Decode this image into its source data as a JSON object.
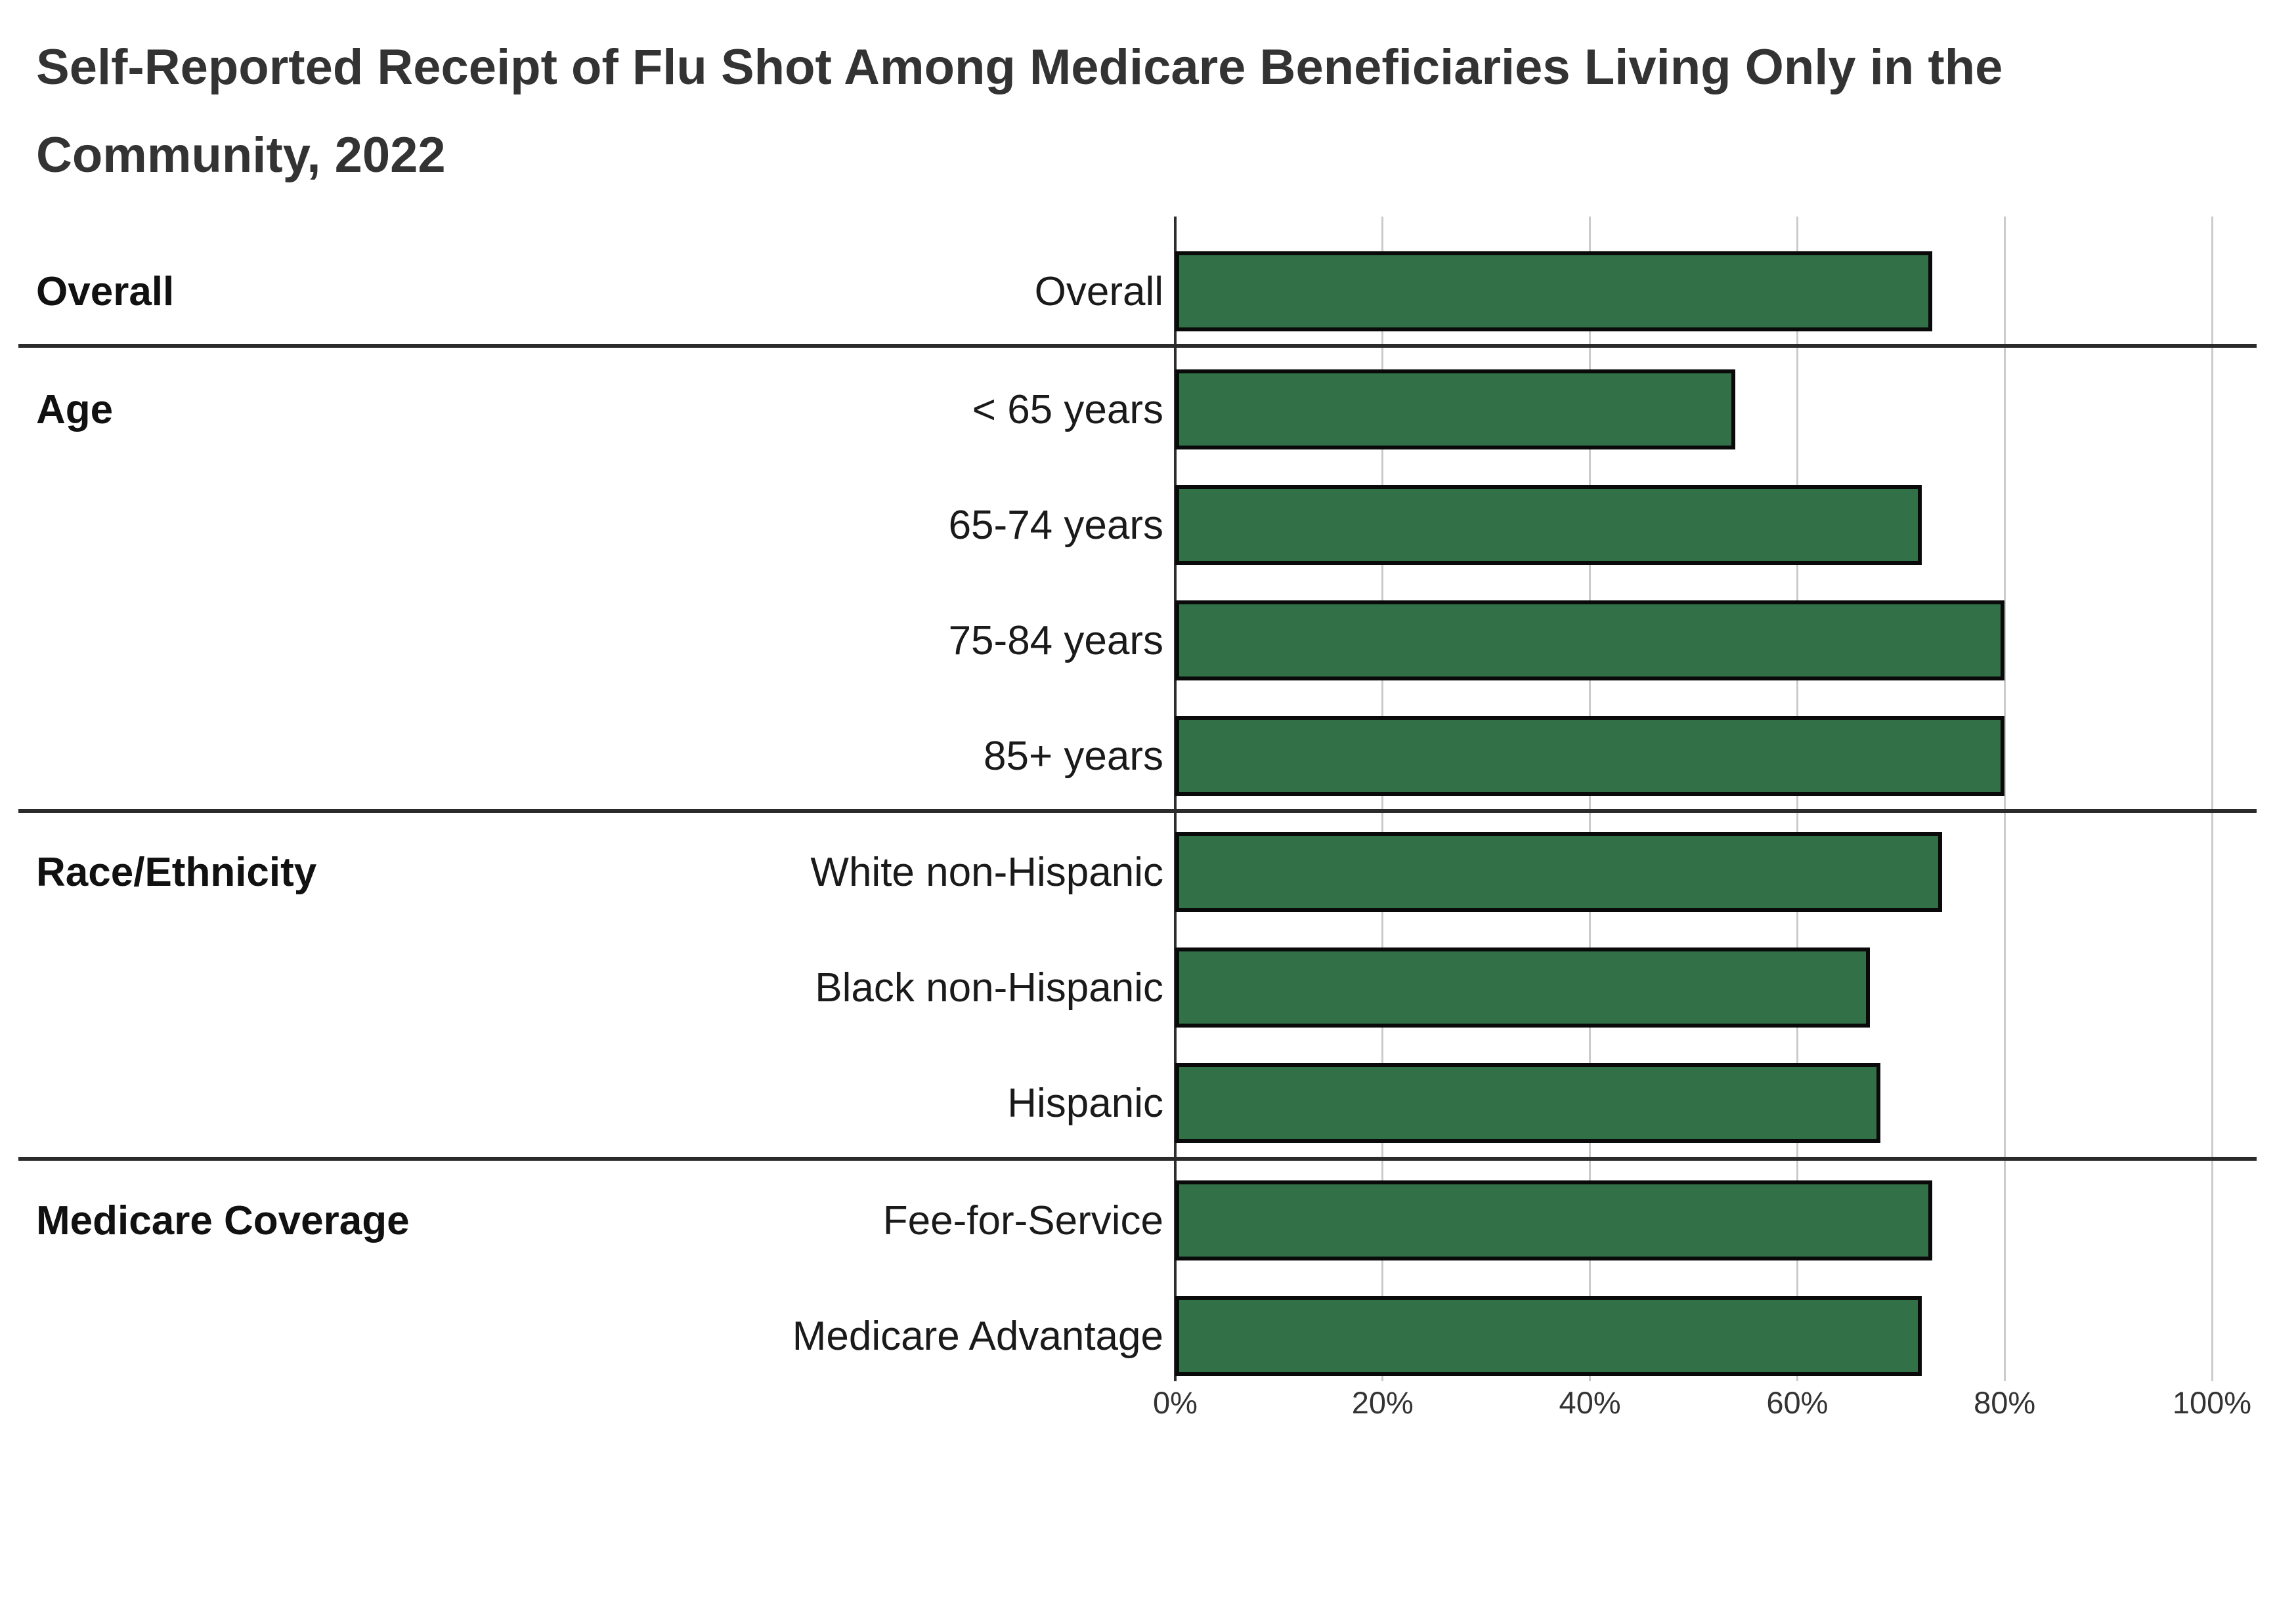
{
  "title": {
    "line1": "Self-Reported Receipt of Flu Shot Among Medicare Beneficiaries Living Only in the",
    "line2": "Community, 2022"
  },
  "chart_data": {
    "type": "bar",
    "orientation": "horizontal",
    "title": "Self-Reported Receipt of Flu Shot Among Medicare Beneficiaries Living Only in the Community, 2022",
    "unit": "percent",
    "xlim": [
      0,
      100
    ],
    "x_ticks": [
      "0%",
      "20%",
      "40%",
      "60%",
      "80%",
      "100%"
    ],
    "grid": "vertical",
    "bar_color": "#327148",
    "bar_border_color": "#0a0a0a",
    "groups": [
      {
        "label": "Overall",
        "rows": [
          {
            "label": "Overall",
            "value": 73
          }
        ]
      },
      {
        "label": "Age",
        "rows": [
          {
            "label": "< 65 years",
            "value": 54
          },
          {
            "label": "65-74 years",
            "value": 72
          },
          {
            "label": "75-84 years",
            "value": 80
          },
          {
            "label": "85+ years",
            "value": 80
          }
        ]
      },
      {
        "label": "Race/Ethnicity",
        "rows": [
          {
            "label": "White non-Hispanic",
            "value": 74
          },
          {
            "label": "Black non-Hispanic",
            "value": 67
          },
          {
            "label": "Hispanic",
            "value": 68
          }
        ]
      },
      {
        "label": "Medicare Coverage",
        "rows": [
          {
            "label": "Fee-for-Service",
            "value": 73
          },
          {
            "label": "Medicare Advantage",
            "value": 72
          }
        ]
      }
    ]
  }
}
